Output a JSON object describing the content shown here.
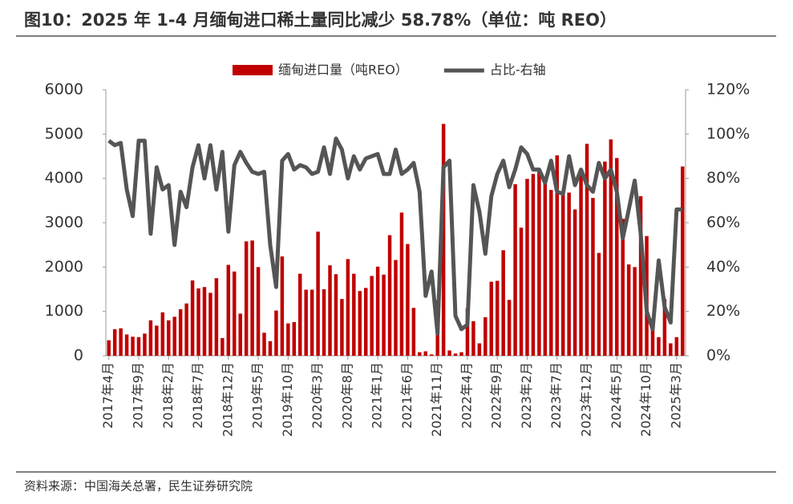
{
  "title": "图10：2025 年 1-4 月缅甸进口稀土量同比减少 58.78%（单位：吨 REO）",
  "source": "资料来源：中国海关总署，民生证券研究院",
  "chart_data": {
    "type": "bar",
    "categories": [
      "2017年4月",
      null,
      null,
      null,
      null,
      "2017年9月",
      null,
      null,
      null,
      null,
      "2018年2月",
      null,
      null,
      null,
      null,
      "2018年7月",
      null,
      null,
      null,
      null,
      "2018年12月",
      null,
      null,
      null,
      null,
      "2019年5月",
      null,
      null,
      null,
      null,
      "2019年10月",
      null,
      null,
      null,
      null,
      "2020年3月",
      null,
      null,
      null,
      null,
      "2020年8月",
      null,
      null,
      null,
      null,
      "2021年1月",
      null,
      null,
      null,
      null,
      "2021年6月",
      null,
      null,
      null,
      null,
      "2021年11月",
      null,
      null,
      null,
      null,
      "2022年4月",
      null,
      null,
      null,
      null,
      "2022年9月",
      null,
      null,
      null,
      null,
      "2023年2月",
      null,
      null,
      null,
      null,
      "2023年7月",
      null,
      null,
      null,
      null,
      "2023年12月",
      null,
      null,
      null,
      null,
      "2024年5月",
      null,
      null,
      null,
      null,
      "2024年10月",
      null,
      null,
      null,
      null,
      "2025年3月",
      null
    ],
    "series": [
      {
        "name": "缅甸进口量（吨REO）",
        "type": "bar",
        "color": "#c00000",
        "values": [
          350,
          600,
          620,
          480,
          430,
          420,
          500,
          800,
          680,
          980,
          800,
          880,
          1050,
          1180,
          1700,
          1520,
          1550,
          1420,
          1750,
          400,
          2050,
          1900,
          950,
          2580,
          2600,
          2000,
          520,
          330,
          1020,
          2240,
          730,
          760,
          1850,
          1490,
          1490,
          2800,
          1500,
          2040,
          1840,
          1280,
          2180,
          1850,
          1460,
          1530,
          1800,
          2010,
          1830,
          2720,
          2160,
          3230,
          2520,
          1080,
          80,
          100,
          30,
          1250,
          5230,
          120,
          50,
          80,
          1070,
          780,
          280,
          870,
          1670,
          1690,
          2380,
          1260,
          3870,
          2890,
          3990,
          4100,
          4200,
          4000,
          3740,
          4520,
          3670,
          3680,
          3300,
          4100,
          4780,
          3560,
          2320,
          4380,
          4880,
          4460,
          3090,
          2060,
          2000,
          3600,
          2700,
          830,
          420,
          1280,
          280,
          420,
          4270
        ]
      },
      {
        "name": "占比-右轴",
        "type": "line",
        "axis": "y2",
        "color": "#555555",
        "values": [
          97,
          95,
          96,
          75,
          63,
          97,
          97,
          55,
          85,
          75,
          77,
          50,
          74,
          67,
          85,
          95,
          80,
          95,
          75,
          92,
          56,
          86,
          92,
          87,
          83,
          82,
          83,
          50,
          31,
          88,
          91,
          84,
          86,
          85,
          82,
          83,
          94,
          82,
          98,
          93,
          80,
          90,
          84,
          89,
          90,
          91,
          82,
          82,
          93,
          82,
          84,
          87,
          74,
          27,
          38,
          10,
          85,
          88,
          18,
          12,
          14,
          77,
          65,
          46,
          72,
          82,
          88,
          76,
          84,
          94,
          91,
          84,
          84,
          78,
          88,
          74,
          73,
          90,
          77,
          84,
          77,
          74,
          87,
          80,
          84,
          74,
          53,
          66,
          79,
          55,
          20,
          12,
          43,
          22,
          15,
          66,
          66
        ]
      }
    ],
    "ylim": [
      0,
      6000
    ],
    "yticks": [
      0,
      1000,
      2000,
      3000,
      4000,
      5000,
      6000
    ],
    "y2lim": [
      0,
      120
    ],
    "y2ticks": [
      {
        "value": 0,
        "label": "0%"
      },
      {
        "value": 20,
        "label": "20%"
      },
      {
        "value": 40,
        "label": "40%"
      },
      {
        "value": 60,
        "label": "60%"
      },
      {
        "value": 80,
        "label": "80%"
      },
      {
        "value": 100,
        "label": "100%"
      },
      {
        "value": 120,
        "label": "120%"
      }
    ],
    "legend": "top"
  }
}
